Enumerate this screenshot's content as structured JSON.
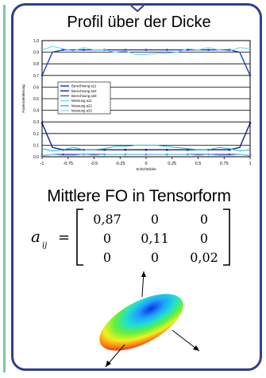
{
  "title": "Profil über der Dicke",
  "subtitle": "Mittlere FO in Tensorform",
  "chart_data": {
    "type": "line",
    "title": "",
    "xlabel": "Schichtdicke",
    "ylabel": "Faserorientierung",
    "xlim": [
      -1,
      1
    ],
    "ylim": [
      0,
      1
    ],
    "xticks": [
      "-1",
      "-0.75",
      "-0.5",
      "-0.25",
      "0",
      "0.25",
      "0.5",
      "0.75",
      "1"
    ],
    "yticks": [
      "0.0",
      "0.1",
      "0.2",
      "0.3",
      "0.4",
      "0.5",
      "0.6",
      "0.7",
      "0.8",
      "0.9",
      "1.0"
    ],
    "x": [
      -1,
      -0.9,
      -0.8,
      -0.7,
      -0.6,
      -0.5,
      -0.4,
      -0.3,
      -0.2,
      -0.1,
      0,
      0.1,
      0.2,
      0.3,
      0.4,
      0.5,
      0.6,
      0.7,
      0.8,
      0.9,
      1
    ],
    "legend_placement": "center-left",
    "series": [
      {
        "name": "Berechnung a11",
        "color": "#1f3fbf",
        "values": [
          0.7,
          0.9,
          0.92,
          0.92,
          0.92,
          0.92,
          0.92,
          0.92,
          0.92,
          0.92,
          0.92,
          0.92,
          0.92,
          0.92,
          0.92,
          0.92,
          0.92,
          0.92,
          0.92,
          0.9,
          0.7
        ]
      },
      {
        "name": "Berechnung a22",
        "color": "#0a1f8f",
        "values": [
          0.29,
          0.08,
          0.06,
          0.06,
          0.06,
          0.06,
          0.06,
          0.06,
          0.06,
          0.06,
          0.06,
          0.06,
          0.06,
          0.06,
          0.06,
          0.06,
          0.06,
          0.06,
          0.06,
          0.08,
          0.29
        ]
      },
      {
        "name": "Berechnung a33",
        "color": "#2a4fd0",
        "values": [
          0.01,
          0.02,
          0.02,
          0.02,
          0.02,
          0.02,
          0.02,
          0.02,
          0.02,
          0.02,
          0.02,
          0.02,
          0.02,
          0.02,
          0.02,
          0.02,
          0.02,
          0.02,
          0.02,
          0.02,
          0.01
        ]
      },
      {
        "name": "Messung a11",
        "color": "#6fd8f0",
        "values": [
          0.92,
          0.95,
          0.93,
          0.91,
          0.94,
          0.92,
          0.92,
          0.9,
          0.91,
          0.88,
          0.88,
          0.89,
          0.89,
          0.9,
          0.93,
          0.92,
          0.94,
          0.92,
          0.91,
          0.94,
          0.93
        ]
      },
      {
        "name": "Messung a22",
        "color": "#2fb8d8",
        "values": [
          0.07,
          0.05,
          0.06,
          0.08,
          0.06,
          0.06,
          0.07,
          0.09,
          0.09,
          0.1,
          0.1,
          0.1,
          0.09,
          0.08,
          0.07,
          0.06,
          0.06,
          0.08,
          0.07,
          0.05,
          0.06
        ]
      },
      {
        "name": "Messung a33",
        "color": "#8fe0f0",
        "values": [
          0.01,
          0.02,
          0.01,
          0.01,
          0.02,
          0.01,
          0.02,
          0.02,
          0.02,
          0.02,
          0.02,
          0.02,
          0.02,
          0.02,
          0.02,
          0.01,
          0.02,
          0.01,
          0.01,
          0.02,
          0.01
        ]
      }
    ]
  },
  "equation": {
    "lhs_symbol": "a",
    "lhs_subscript": "ij",
    "equals": "=",
    "matrix": [
      [
        "0,87",
        "0",
        "0"
      ],
      [
        "0",
        "0,11",
        "0"
      ],
      [
        "0",
        "0",
        "0,02"
      ]
    ]
  }
}
